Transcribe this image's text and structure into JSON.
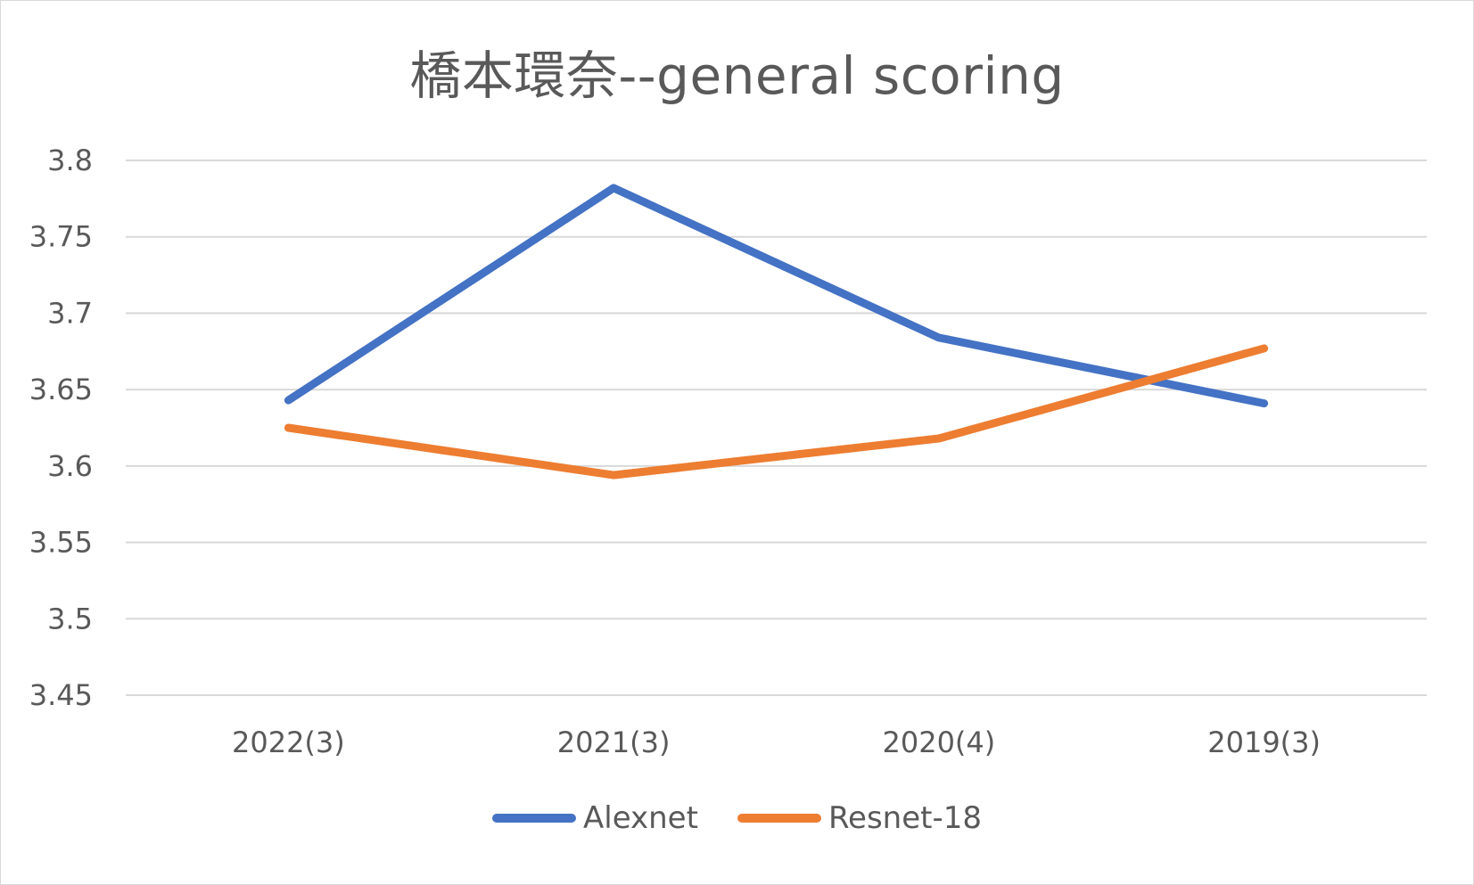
{
  "chart_data": {
    "type": "line",
    "title": "橋本環奈--general scoring",
    "xlabel": "",
    "ylabel": "",
    "categories": [
      "2022(3)",
      "2021(3)",
      "2020(4)",
      "2019(3)"
    ],
    "ylim": [
      3.45,
      3.8
    ],
    "yticks": [
      3.45,
      3.5,
      3.55,
      3.6,
      3.65,
      3.7,
      3.75,
      3.8
    ],
    "ytick_labels": [
      "3.45",
      "3.5",
      "3.55",
      "3.6",
      "3.65",
      "3.7",
      "3.75",
      "3.8"
    ],
    "grid": true,
    "legend_position": "bottom",
    "series": [
      {
        "name": "Alexnet",
        "color": "#4472C4",
        "values": [
          3.643,
          3.782,
          3.684,
          3.641
        ]
      },
      {
        "name": "Resnet-18",
        "color": "#ED7D31",
        "values": [
          3.625,
          3.594,
          3.618,
          3.677
        ]
      }
    ]
  }
}
